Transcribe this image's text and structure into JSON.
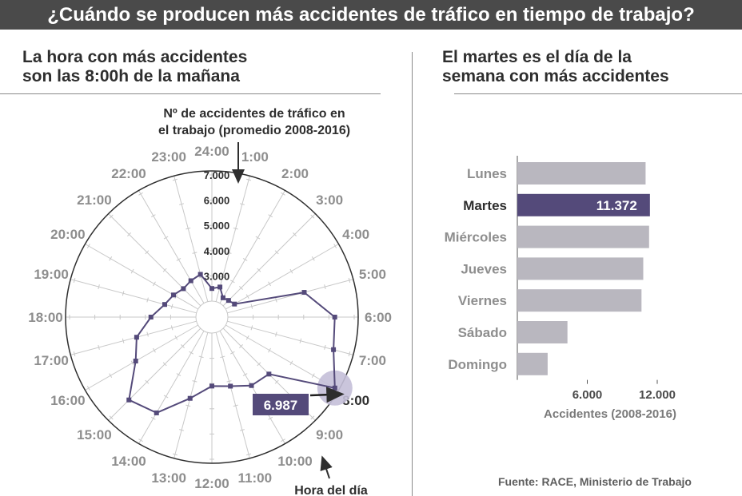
{
  "header": {
    "title": "¿Cuándo se producen más accidentes de tráfico en tiempo de trabajo?"
  },
  "left_panel": {
    "title_line1": "La hora con más accidentes",
    "title_line2": "son las 8:00h de la mañana",
    "note_line1": "Nº de accidentes de tráfico en",
    "note_line2": "el trabajo (promedio 2008-2016)",
    "axis_label": "Hora del día",
    "highlight_value_label": "6.987"
  },
  "right_panel": {
    "title_line1": "El martes es el día de la",
    "title_line2": "semana con más accidentes",
    "highlight_value_label": "11.372"
  },
  "footer": {
    "source": "Fuente: RACE, Ministerio de Trabajo"
  },
  "colors": {
    "accent": "#544a7a",
    "highlight_circle": "#c4bfd8",
    "bar": "#b9b7bf",
    "text_gray": "#8e8e8e",
    "grid": "#c8c8c8"
  },
  "chart_data": [
    {
      "type": "radar",
      "title": "Nº de accidentes de tráfico en el trabajo (promedio 2008-2016)",
      "xlabel": "Hora del día",
      "categories": [
        "1:00",
        "2:00",
        "3:00",
        "4:00",
        "5:00",
        "6:00",
        "7:00",
        "8:00",
        "9:00",
        "10:00",
        "11:00",
        "12:00",
        "13:00",
        "14:00",
        "15:00",
        "16:00",
        "17:00",
        "18:00",
        "19:00",
        "20:00",
        "21:00",
        "22:00",
        "23:00",
        "24:00"
      ],
      "radial_ticks": [
        "3.000",
        "4.000",
        "5.000",
        "6.000",
        "7.000"
      ],
      "rlim": [
        2000,
        7000
      ],
      "highlight_category": "8:00",
      "values": [
        2600,
        2250,
        2300,
        2400,
        5150,
        6230,
        6350,
        6987,
        4560,
        4500,
        4200,
        4100,
        4700,
        5750,
        6010,
        4850,
        4450,
        3780,
        3300,
        3120,
        2960,
        3030,
        3120,
        2500
      ]
    },
    {
      "type": "bar",
      "orientation": "horizontal",
      "categories": [
        "Lunes",
        "Martes",
        "Miércoles",
        "Jueves",
        "Viernes",
        "Sábado",
        "Domingo"
      ],
      "values": [
        11000,
        11372,
        11300,
        10800,
        10650,
        4300,
        2600
      ],
      "highlight_category": "Martes",
      "xlabel": "Accidentes (2008-2016)",
      "xticks": [
        "6.000",
        "12.000"
      ],
      "xlim": [
        0,
        12000
      ]
    }
  ]
}
